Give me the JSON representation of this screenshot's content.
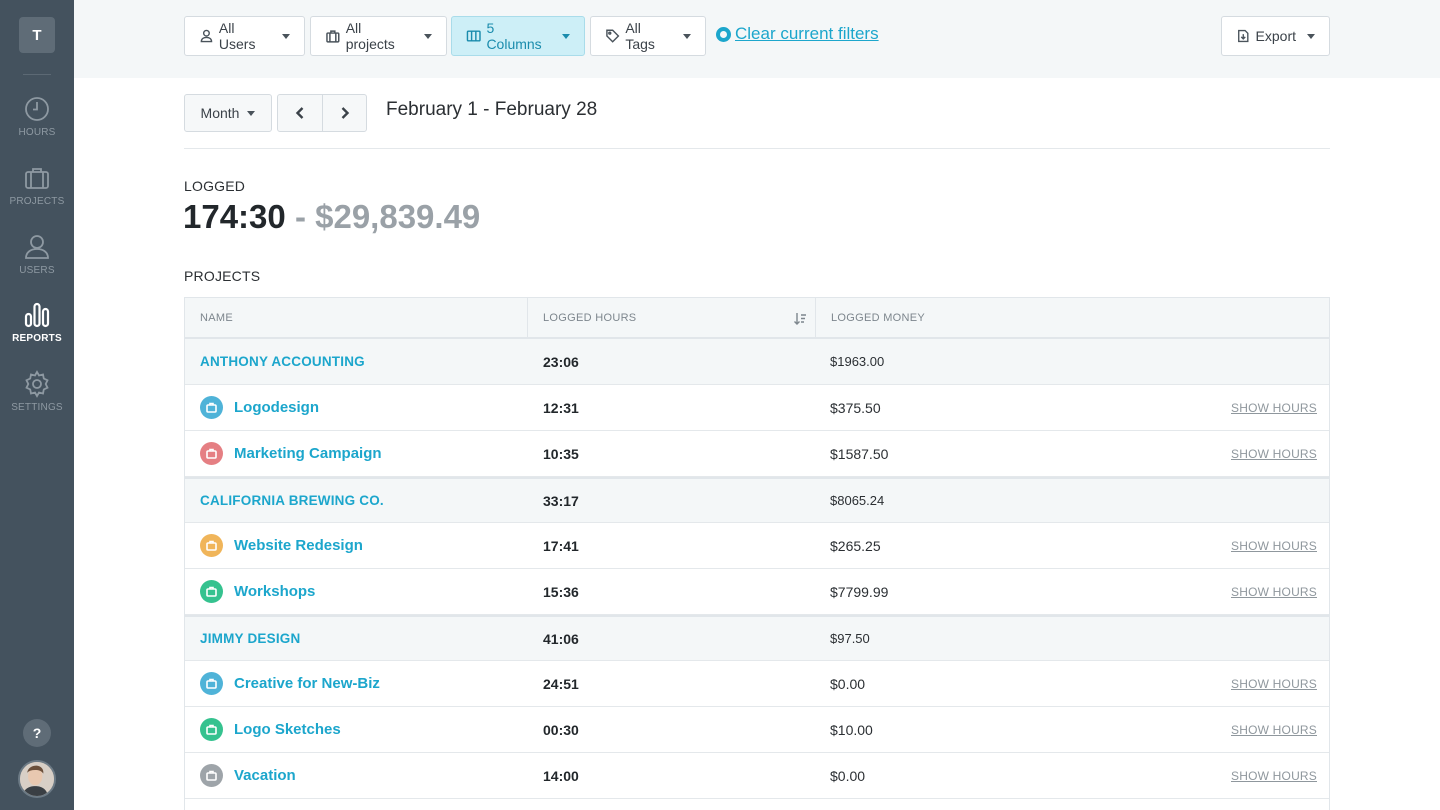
{
  "sidebar": {
    "logo": "T",
    "items": [
      {
        "label": "HOURS",
        "icon": "clock-icon"
      },
      {
        "label": "PROJECTS",
        "icon": "briefcase-icon"
      },
      {
        "label": "USERS",
        "icon": "user-icon"
      },
      {
        "label": "REPORTS",
        "icon": "bar-chart-icon",
        "active": true
      },
      {
        "label": "SETTINGS",
        "icon": "gear-icon"
      }
    ],
    "help": "?"
  },
  "filters": {
    "users": "All Users",
    "projects": "All projects",
    "columns": "5 Columns",
    "tags": "All Tags",
    "clear": "Clear current filters",
    "export": "Export"
  },
  "period": {
    "unit": "Month",
    "range": "February 1 - February 28"
  },
  "summary": {
    "label": "LOGGED",
    "hours": "174:30",
    "separator": "-",
    "money": "$29,839.49"
  },
  "projects_label": "PROJECTS",
  "table": {
    "headers": [
      "NAME",
      "LOGGED HOURS",
      "LOGGED MONEY"
    ],
    "action_label": "SHOW HOURS",
    "groups": [
      {
        "client": "ANTHONY ACCOUNTING",
        "hours": "23:06",
        "money": "$1963.00",
        "projects": [
          {
            "name": "Logodesign",
            "hours": "12:31",
            "money": "$375.50",
            "color": "#4fb3d8"
          },
          {
            "name": "Marketing Campaign",
            "hours": "10:35",
            "money": "$1587.50",
            "color": "#e57f83"
          }
        ]
      },
      {
        "client": "CALIFORNIA BREWING CO.",
        "hours": "33:17",
        "money": "$8065.24",
        "projects": [
          {
            "name": "Website Redesign",
            "hours": "17:41",
            "money": "$265.25",
            "color": "#f0b55a"
          },
          {
            "name": "Workshops",
            "hours": "15:36",
            "money": "$7799.99",
            "color": "#35c28f"
          }
        ]
      },
      {
        "client": "JIMMY DESIGN",
        "hours": "41:06",
        "money": "$97.50",
        "projects": [
          {
            "name": "Creative for New-Biz",
            "hours": "24:51",
            "money": "$0.00",
            "color": "#4fb3d8"
          },
          {
            "name": "Logo Sketches",
            "hours": "00:30",
            "money": "$10.00",
            "color": "#35c28f"
          },
          {
            "name": "Vacation",
            "hours": "14:00",
            "money": "$0.00",
            "color": "#9ea4a9"
          }
        ]
      }
    ]
  }
}
